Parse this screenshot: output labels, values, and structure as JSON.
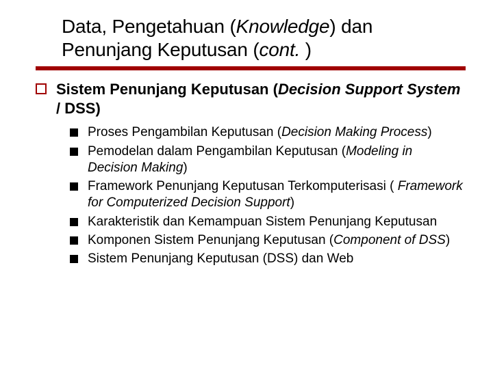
{
  "colors": {
    "rule": "#a00000",
    "outline_marker_border": "#a00000",
    "sub_bullet": "#000000",
    "text": "#000000",
    "background": "#ffffff"
  },
  "title": {
    "plain1": "Data, Pengetahuan (",
    "italic1": "Knowledge",
    "plain2": ") dan Penunjang Keputusan (",
    "italic2": "cont.",
    "plain3": " )",
    "fontsize": 28
  },
  "outline": {
    "plain1": "Sistem Penunjang Keputusan (",
    "italic1": "Decision Support System",
    "plain2": " / DSS)",
    "fontsize": 22
  },
  "items": [
    {
      "plain1": "Proses Pengambilan Keputusan (",
      "italic1": "Decision Making Process",
      "plain2": ")"
    },
    {
      "plain1": "Pemodelan dalam Pengambilan Keputusan (",
      "italic1": "Modeling in Decision Making",
      "plain2": ")"
    },
    {
      "plain1": "Framework Penunjang Keputusan Terkomputerisasi ( ",
      "italic1": "Framework for Computerized Decision Support",
      "plain2": ")"
    },
    {
      "plain1": "Karakteristik dan Kemampuan Sistem Penunjang Keputusan",
      "italic1": "",
      "plain2": ""
    },
    {
      "plain1": "Komponen Sistem Penunjang Keputusan (",
      "italic1": "Component of DSS",
      "plain2": ")"
    },
    {
      "plain1": "Sistem Penunjang Keputusan (DSS) dan Web",
      "italic1": "",
      "plain2": ""
    }
  ],
  "sub_fontsize": 19
}
